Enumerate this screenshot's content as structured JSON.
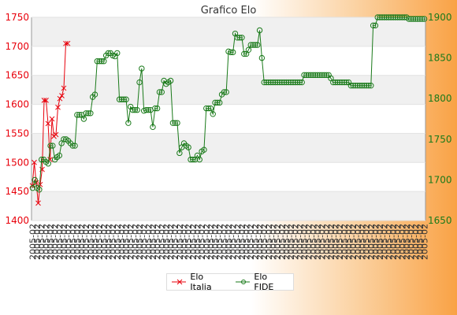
{
  "chart_data": {
    "type": "line",
    "title": "Grafico Elo",
    "grid": "horizontal bands",
    "legend_position": "bottom-center",
    "left_axis": {
      "ylim": [
        1400,
        1750
      ],
      "ticks": [
        1400,
        1450,
        1500,
        1550,
        1600,
        1650,
        1700,
        1750
      ],
      "color": "#e8000b"
    },
    "right_axis": {
      "ylim": [
        1650,
        1900
      ],
      "ticks": [
        1650,
        1700,
        1750,
        1800,
        1850,
        1900
      ],
      "color": "#1a7a1a"
    },
    "x_tick_label": "2005-02",
    "series": [
      {
        "name": "Elo Italia",
        "axis": "left",
        "color": "#e8000b",
        "marker": "cross",
        "x": [
          0,
          1,
          2,
          3,
          4,
          5,
          6,
          7,
          8,
          9,
          10,
          11,
          12,
          13,
          14,
          15,
          16,
          17,
          18
        ],
        "values": [
          1460,
          1500,
          1465,
          1430,
          1462,
          1488,
          1607,
          1607,
          1567,
          1505,
          1575,
          1545,
          1548,
          1595,
          1610,
          1615,
          1628,
          1705,
          1705
        ]
      },
      {
        "name": "Elo FIDE",
        "axis": "right",
        "color": "#1a7a1a",
        "marker": "circle",
        "values": [
          1690,
          1700,
          1690,
          1688,
          1725,
          1725,
          1722,
          1720,
          1742,
          1742,
          1725,
          1728,
          1730,
          1745,
          1750,
          1750,
          1748,
          1745,
          1742,
          1742,
          1780,
          1780,
          1780,
          1775,
          1782,
          1782,
          1782,
          1802,
          1805,
          1846,
          1846,
          1846,
          1846,
          1853,
          1856,
          1856,
          1853,
          1852,
          1856,
          1799,
          1799,
          1799,
          1799,
          1770,
          1790,
          1786,
          1786,
          1786,
          1820,
          1837,
          1785,
          1786,
          1786,
          1786,
          1765,
          1788,
          1788,
          1808,
          1808,
          1822,
          1818,
          1820,
          1822,
          1770,
          1770,
          1770,
          1733,
          1740,
          1745,
          1742,
          1740,
          1725,
          1725,
          1725,
          1730,
          1725,
          1735,
          1737,
          1788,
          1788,
          1788,
          1781,
          1795,
          1795,
          1795,
          1805,
          1808,
          1808,
          1858,
          1857,
          1857,
          1880,
          1875,
          1875,
          1875,
          1855,
          1855,
          1860,
          1866,
          1866,
          1866,
          1866,
          1884,
          1850,
          1820,
          1820,
          1820,
          1820,
          1820,
          1820,
          1820,
          1820,
          1820,
          1820,
          1820,
          1820,
          1820,
          1820,
          1820,
          1820,
          1820,
          1820,
          1829,
          1829,
          1829,
          1829,
          1829,
          1829,
          1829,
          1829,
          1829,
          1829,
          1829,
          1829,
          1825,
          1820,
          1820,
          1820,
          1820,
          1820,
          1820,
          1820,
          1820,
          1816,
          1816,
          1816,
          1816,
          1816,
          1816,
          1816,
          1816,
          1816,
          1816,
          1890,
          1890,
          1900,
          1900,
          1900,
          1900,
          1900,
          1900,
          1900,
          1900,
          1900,
          1900,
          1900,
          1900,
          1900,
          1900,
          1898,
          1898,
          1898,
          1898,
          1898,
          1898,
          1898,
          1898
        ]
      }
    ]
  },
  "legend": {
    "items": [
      {
        "label": "Elo Italia",
        "color": "#e8000b"
      },
      {
        "label": "Elo FIDE",
        "color": "#1a7a1a"
      }
    ]
  }
}
